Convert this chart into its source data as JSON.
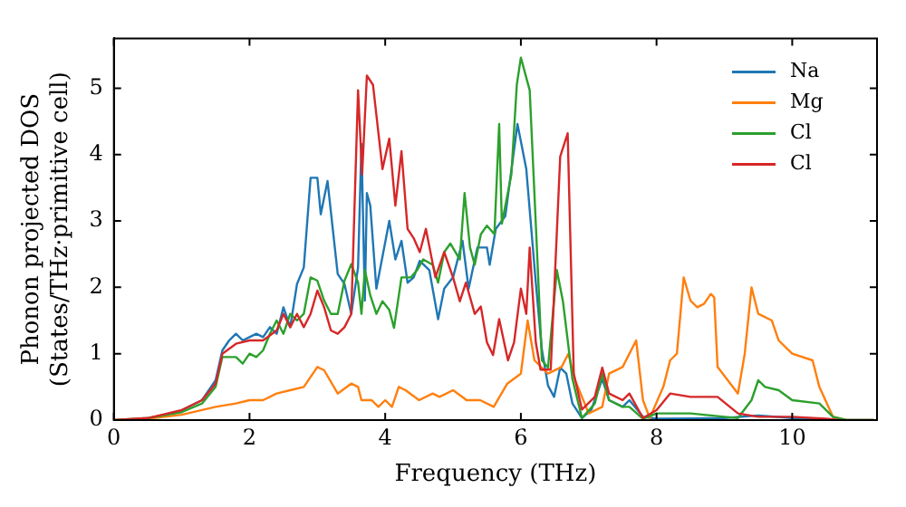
{
  "chart_data": {
    "type": "line",
    "xlabel": "Frequency (THz)",
    "ylabel": "Phonon projected DOS\n(States/THz·primitive cell)",
    "xlim": [
      0,
      11.25
    ],
    "ylim": [
      0,
      5.75
    ],
    "xticks": [
      0,
      2,
      4,
      6,
      8,
      10
    ],
    "yticks": [
      0,
      1,
      2,
      3,
      4,
      5
    ],
    "grid": false,
    "legend": "top right",
    "marker": "none",
    "line_style": "solid",
    "series": [
      {
        "name": "Na",
        "color": "#1f77b4",
        "x": [
          1,
          1.3,
          1.5,
          1.6,
          1.7,
          1.8,
          1.9,
          2.0,
          2.1,
          2.2,
          2.3,
          2.4,
          2.5,
          2.6,
          2.7,
          2.8,
          2.9,
          3.0,
          3.05,
          3.15,
          3.3,
          3.4,
          3.5,
          3.6,
          3.65,
          3.7,
          3.73,
          3.78,
          3.87,
          4.06,
          4.15,
          4.24,
          4.33,
          4.42,
          4.51,
          4.65,
          4.78,
          4.87,
          5.0,
          5.14,
          5.23,
          5.36,
          5.5,
          5.54,
          5.63,
          5.77,
          5.95,
          6.08,
          6.22,
          6.31,
          6.4,
          6.49,
          6.58,
          6.67,
          6.76,
          6.9,
          7.04,
          7.2,
          7.3,
          7.5,
          7.6,
          7.8,
          8.0,
          9.0,
          9.5,
          10.0,
          10.3,
          10.5,
          11.2
        ],
        "values": [
          0.15,
          0.3,
          0.6,
          1.05,
          1.2,
          1.3,
          1.2,
          1.25,
          1.3,
          1.25,
          1.4,
          1.3,
          1.7,
          1.4,
          2.05,
          2.3,
          3.65,
          3.65,
          3.1,
          3.6,
          2.2,
          2.05,
          1.6,
          2.3,
          4.16,
          1.8,
          3.42,
          3.23,
          1.98,
          3.0,
          2.42,
          2.7,
          2.07,
          2.15,
          2.4,
          2.26,
          1.52,
          1.98,
          2.15,
          2.7,
          1.98,
          2.6,
          2.6,
          2.34,
          2.88,
          3.07,
          4.46,
          3.78,
          2.07,
          1.06,
          0.52,
          0.35,
          0.79,
          0.7,
          0.25,
          0.03,
          0.16,
          0.62,
          0.3,
          0.2,
          0.3,
          0.05,
          0.02,
          0.03,
          0.07,
          0.03,
          0.02,
          0,
          0
        ]
      },
      {
        "name": "Mg",
        "color": "#ff7f0e",
        "x": [
          0,
          0.5,
          1,
          1.5,
          1.8,
          2.0,
          2.2,
          2.4,
          2.6,
          2.8,
          3.0,
          3.1,
          3.3,
          3.5,
          3.6,
          3.65,
          3.8,
          3.9,
          4.0,
          4.1,
          4.2,
          4.3,
          4.5,
          4.7,
          4.8,
          5.0,
          5.2,
          5.4,
          5.6,
          5.8,
          6.0,
          6.1,
          6.2,
          6.4,
          6.6,
          6.7,
          6.8,
          7.0,
          7.2,
          7.3,
          7.5,
          7.7,
          7.8,
          7.9,
          8.1,
          8.2,
          8.3,
          8.4,
          8.5,
          8.6,
          8.7,
          8.8,
          8.85,
          8.9,
          9.2,
          9.3,
          9.4,
          9.5,
          9.7,
          9.8,
          10.0,
          10.3,
          10.4,
          10.6,
          10.8,
          11.2
        ],
        "values": [
          0,
          0.02,
          0.08,
          0.2,
          0.25,
          0.3,
          0.3,
          0.4,
          0.45,
          0.5,
          0.8,
          0.75,
          0.4,
          0.55,
          0.5,
          0.3,
          0.3,
          0.2,
          0.3,
          0.2,
          0.5,
          0.45,
          0.3,
          0.4,
          0.35,
          0.45,
          0.3,
          0.3,
          0.2,
          0.55,
          0.7,
          1.5,
          0.9,
          0.7,
          0.8,
          1.0,
          0.6,
          0.1,
          0.2,
          0.7,
          0.8,
          1.2,
          0.3,
          0.03,
          0.5,
          0.9,
          1.0,
          2.15,
          1.8,
          1.7,
          1.75,
          1.9,
          1.85,
          0.8,
          0.4,
          1.0,
          2.0,
          1.6,
          1.5,
          1.2,
          1.0,
          0.9,
          0.5,
          0.05,
          0,
          0
        ]
      },
      {
        "name": "Cl",
        "color": "#2ca02c",
        "x": [
          0,
          0.5,
          1,
          1.3,
          1.5,
          1.6,
          1.8,
          1.9,
          2.0,
          2.1,
          2.2,
          2.3,
          2.4,
          2.5,
          2.6,
          2.7,
          2.8,
          2.9,
          3.0,
          3.1,
          3.2,
          3.3,
          3.4,
          3.5,
          3.6,
          3.65,
          3.7,
          3.78,
          3.87,
          3.96,
          4.06,
          4.13,
          4.24,
          4.38,
          4.47,
          4.56,
          4.7,
          4.78,
          4.87,
          4.96,
          5.1,
          5.17,
          5.25,
          5.32,
          5.41,
          5.5,
          5.61,
          5.68,
          5.72,
          5.86,
          5.94,
          6.0,
          6.13,
          6.22,
          6.31,
          6.4,
          6.53,
          6.62,
          6.76,
          6.9,
          7.09,
          7.2,
          7.3,
          7.5,
          7.6,
          7.8,
          8.0,
          8.5,
          9.0,
          9.2,
          9.4,
          9.5,
          9.6,
          9.8,
          10.0,
          10.4,
          10.6,
          10.8,
          11.2
        ],
        "values": [
          0,
          0.03,
          0.12,
          0.25,
          0.5,
          0.95,
          0.95,
          0.85,
          1.0,
          0.95,
          1.05,
          1.3,
          1.5,
          1.3,
          1.6,
          1.5,
          1.6,
          2.15,
          2.1,
          1.8,
          1.6,
          1.6,
          2.1,
          2.35,
          2.07,
          1.6,
          2.26,
          1.88,
          1.6,
          1.79,
          1.66,
          1.39,
          2.15,
          2.15,
          2.26,
          2.42,
          2.34,
          2.07,
          2.53,
          2.66,
          2.42,
          3.42,
          2.6,
          2.34,
          2.8,
          2.93,
          2.8,
          4.46,
          2.96,
          3.7,
          5.05,
          5.46,
          4.97,
          2.96,
          0.9,
          0.79,
          2.26,
          1.79,
          0.62,
          0.03,
          0.25,
          0.7,
          0.3,
          0.2,
          0.2,
          0.02,
          0.1,
          0.1,
          0.05,
          0.03,
          0.3,
          0.6,
          0.5,
          0.45,
          0.3,
          0.25,
          0.05,
          0,
          0
        ]
      },
      {
        "name": "Cl",
        "color": "#d62728",
        "x": [
          0,
          0.5,
          1,
          1.3,
          1.5,
          1.6,
          1.8,
          2.0,
          2.2,
          2.4,
          2.5,
          2.6,
          2.7,
          2.8,
          2.9,
          3.0,
          3.1,
          3.2,
          3.3,
          3.4,
          3.5,
          3.6,
          3.66,
          3.73,
          3.82,
          3.96,
          4.06,
          4.15,
          4.24,
          4.33,
          4.42,
          4.51,
          4.6,
          4.74,
          4.87,
          5.0,
          5.1,
          5.19,
          5.32,
          5.41,
          5.5,
          5.59,
          5.68,
          5.81,
          5.9,
          6.0,
          6.08,
          6.13,
          6.22,
          6.29,
          6.44,
          6.58,
          6.69,
          6.78,
          6.9,
          7.09,
          7.2,
          7.3,
          7.5,
          7.6,
          7.8,
          8.0,
          8.2,
          8.5,
          8.9,
          9.2,
          9.5,
          10.0,
          10.5,
          10.7
        ],
        "values": [
          0,
          0.03,
          0.15,
          0.3,
          0.55,
          1.0,
          1.15,
          1.2,
          1.2,
          1.35,
          1.6,
          1.4,
          1.6,
          1.4,
          1.6,
          1.95,
          1.7,
          1.35,
          1.3,
          1.4,
          1.6,
          4.97,
          3.7,
          5.19,
          5.05,
          3.78,
          4.24,
          3.23,
          4.05,
          2.88,
          2.74,
          2.53,
          2.88,
          2.15,
          2.53,
          2.15,
          1.79,
          2.07,
          1.6,
          1.71,
          1.17,
          0.98,
          1.52,
          0.9,
          1.17,
          1.98,
          1.6,
          2.6,
          1.17,
          0.76,
          0.76,
          3.97,
          4.32,
          0.7,
          0.16,
          0.35,
          0.79,
          0.4,
          0.3,
          0.4,
          0.03,
          0.15,
          0.4,
          0.35,
          0.35,
          0.1,
          0.05,
          0.05,
          0.02,
          0
        ]
      }
    ]
  }
}
